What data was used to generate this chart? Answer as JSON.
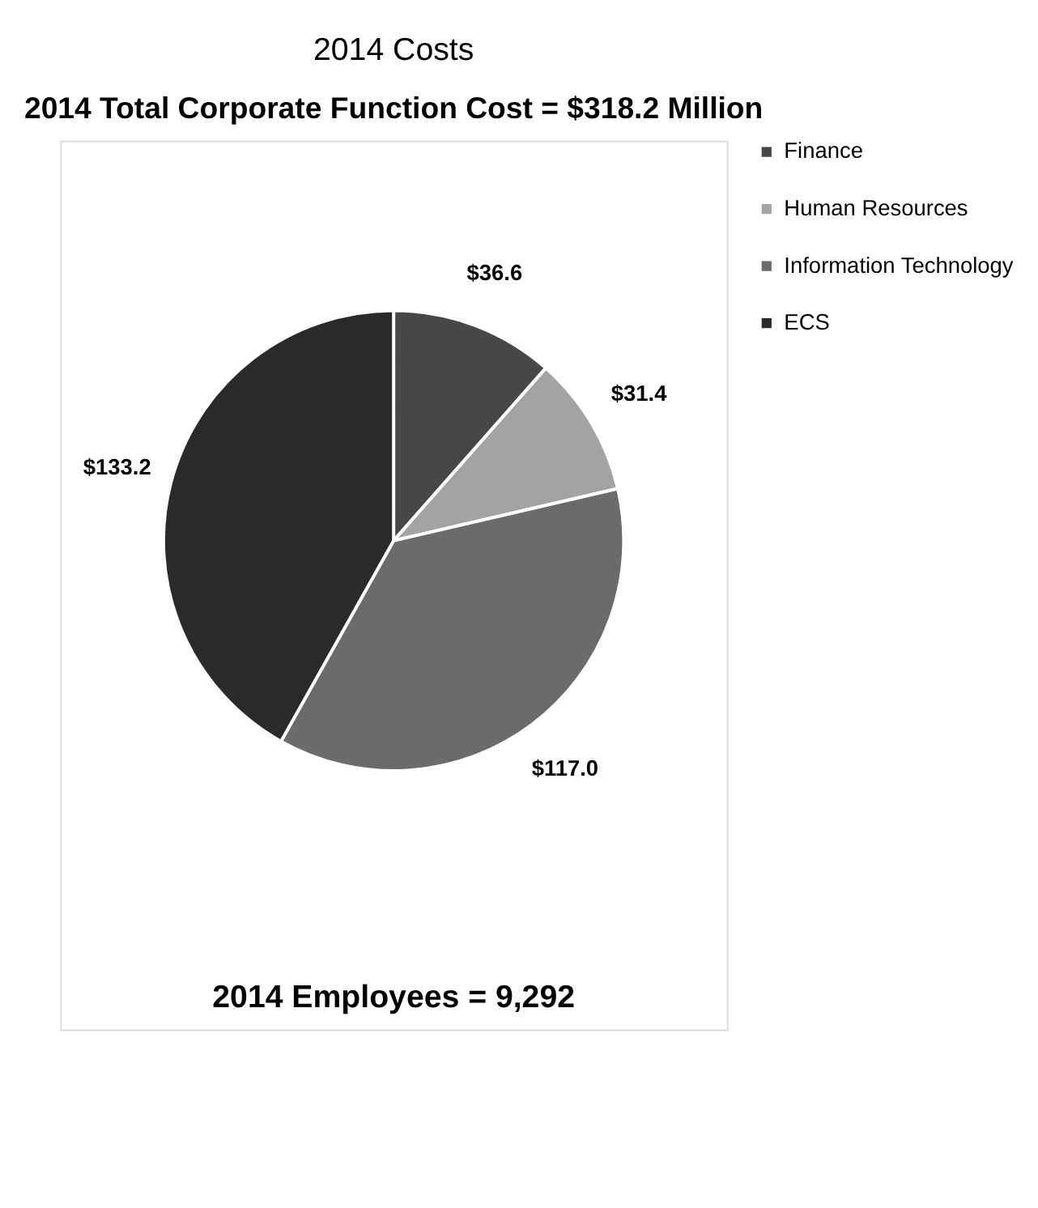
{
  "chart_data": {
    "type": "pie",
    "title": "2014 Costs",
    "subtitle": "2014 Total Corporate Function Cost = $318.2 Million",
    "categories": [
      "Finance",
      "Human Resources",
      "Information Technology",
      "ECS"
    ],
    "values": [
      36.6,
      31.4,
      117.0,
      133.2
    ],
    "colors": [
      "#474747",
      "#a3a3a3",
      "#6b6b6b",
      "#2a2a2a"
    ],
    "value_labels": [
      "$36.6",
      "$31.4",
      "$117.0",
      "$133.2"
    ],
    "legend": "right",
    "annotations": [
      "2014 Employees = 9,292"
    ]
  }
}
